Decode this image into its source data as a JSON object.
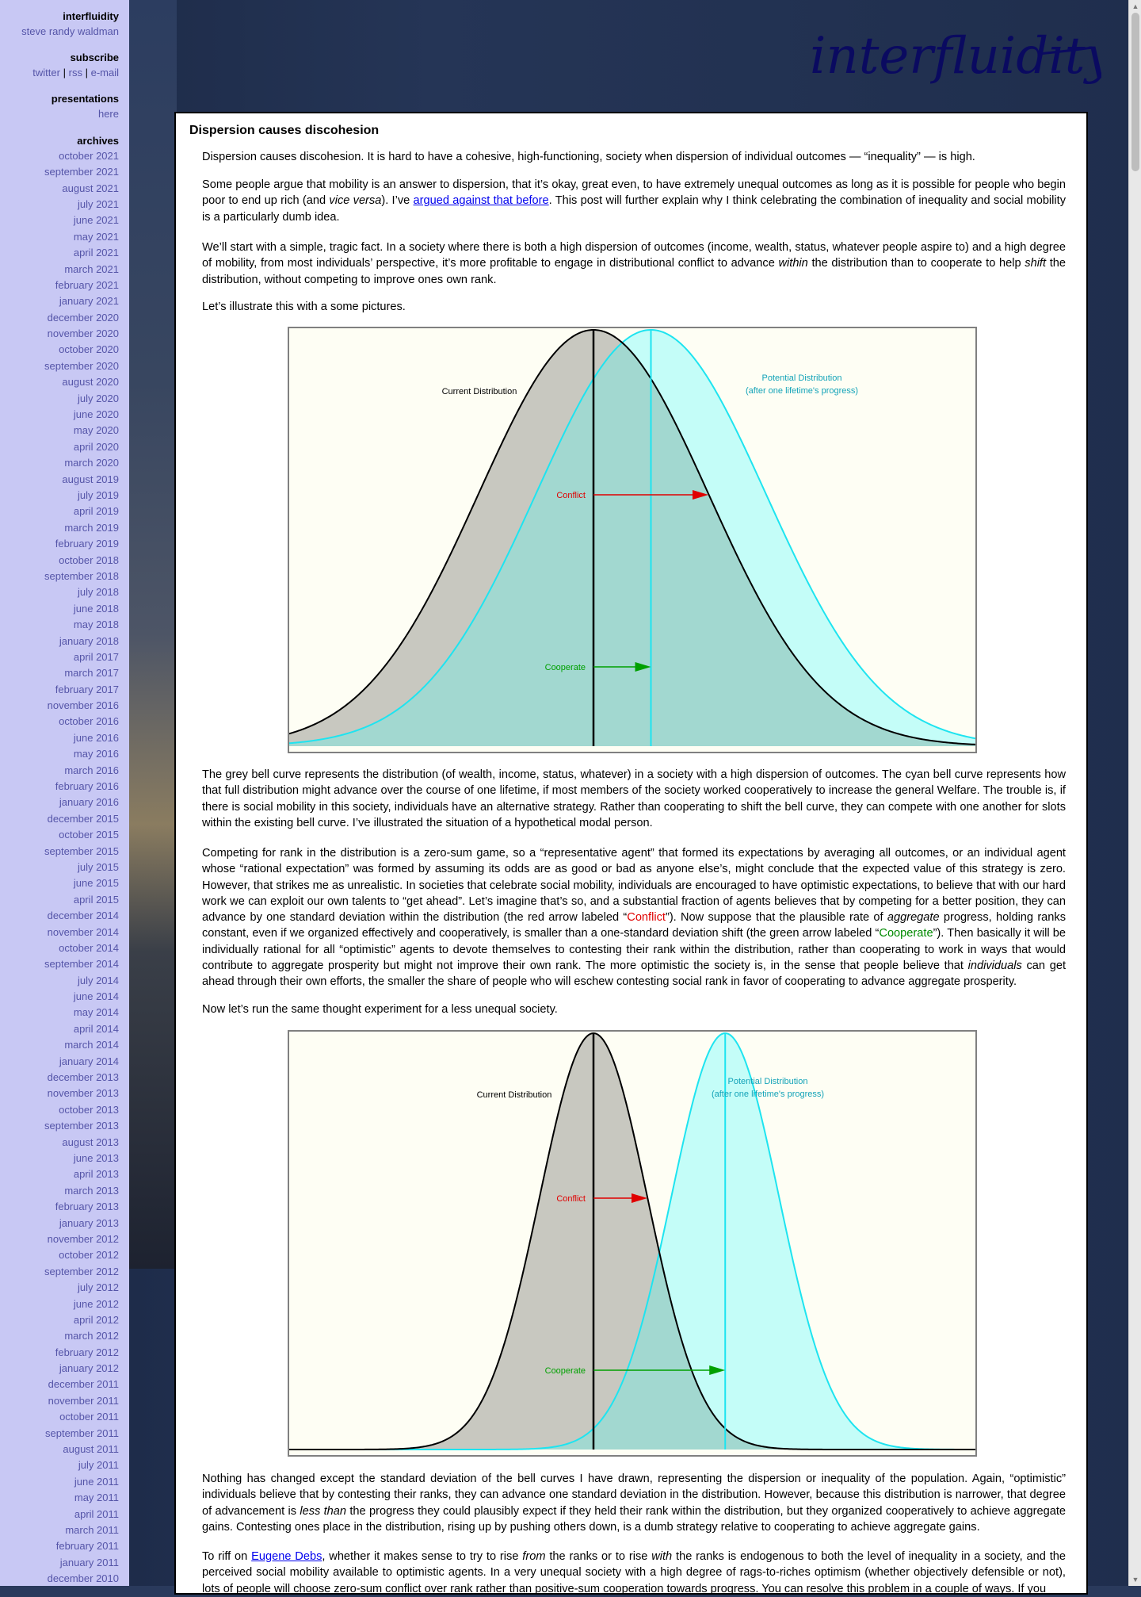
{
  "sidebar": {
    "site_name": "interfluidity",
    "author": "steve randy waldman",
    "subscribe_heading": "subscribe",
    "subscribe_links": [
      "twitter",
      "rss",
      "e-mail"
    ],
    "subscribe_sep": "|",
    "presentations_heading": "presentations",
    "presentations_link": "here",
    "archives_heading": "archives",
    "archives": [
      "october 2021",
      "september 2021",
      "august 2021",
      "july 2021",
      "june 2021",
      "may 2021",
      "april 2021",
      "march 2021",
      "february 2021",
      "january 2021",
      "december 2020",
      "november 2020",
      "october 2020",
      "september 2020",
      "august 2020",
      "july 2020",
      "june 2020",
      "may 2020",
      "april 2020",
      "march 2020",
      "august 2019",
      "july 2019",
      "april 2019",
      "march 2019",
      "february 2019",
      "october 2018",
      "september 2018",
      "july 2018",
      "june 2018",
      "may 2018",
      "january 2018",
      "april 2017",
      "march 2017",
      "february 2017",
      "november 2016",
      "october 2016",
      "june 2016",
      "may 2016",
      "march 2016",
      "february 2016",
      "january 2016",
      "december 2015",
      "october 2015",
      "september 2015",
      "july 2015",
      "june 2015",
      "april 2015",
      "december 2014",
      "november 2014",
      "october 2014",
      "september 2014",
      "july 2014",
      "june 2014",
      "may 2014",
      "april 2014",
      "march 2014",
      "january 2014",
      "december 2013",
      "november 2013",
      "october 2013",
      "september 2013",
      "august 2013",
      "june 2013",
      "april 2013",
      "march 2013",
      "february 2013",
      "january 2013",
      "november 2012",
      "october 2012",
      "september 2012",
      "july 2012",
      "june 2012",
      "april 2012",
      "march 2012",
      "february 2012",
      "january 2012",
      "december 2011",
      "november 2011",
      "october 2011",
      "september 2011",
      "august 2011",
      "july 2011",
      "june 2011",
      "may 2011",
      "april 2011",
      "march 2011",
      "february 2011",
      "january 2011",
      "december 2010"
    ]
  },
  "header": {
    "logo_text": "interfluidity"
  },
  "post": {
    "title": "Dispersion causes discohesion",
    "p1": "Dispersion causes discohesion. It is hard to have a cohesive, high-functioning, society when dispersion of individual outcomes — “inequality” — is high.",
    "p2_a": "Some people argue that mobility is an answer to dispersion, that it’s okay, great even, to have extremely unequal outcomes as long as it is possible for people who begin poor to end up rich (and ",
    "p2_em": "vice versa",
    "p2_b": "). I’ve ",
    "p2_link": "argued against that before",
    "p2_c": ". This post will further explain why I think celebrating the combination of inequality and social mobility is a particularly dumb idea.",
    "p3_a": "We’ll start with a simple, tragic fact. In a society where there is both a high dispersion of outcomes (income, wealth, status, whatever people aspire to) and a high degree of mobility, from most individuals’ perspective, it’s more profitable to engage in distributional conflict to advance ",
    "p3_em1": "within",
    "p3_b": " the distribution than to cooperate to help ",
    "p3_em2": "shift",
    "p3_c": " the distribution, without competing to improve ones own rank.",
    "p4": "Let’s illustrate this with a some pictures.",
    "p5": "The grey bell curve represents the distribution (of wealth, income, status, whatever) in a society with a high dispersion of outcomes. The cyan bell curve represents how that full distribution might advance over the course of one lifetime, if most members of the society worked cooperatively to increase the general Welfare. The trouble is, if there is social mobility in this society, individuals have an alternative strategy. Rather than cooperating to shift the bell curve, they can compete with one another for slots within the existing bell curve. I’ve illustrated the situation of a hypothetical modal person.",
    "p6_a": "Competing for rank in the distribution is a zero-sum game, so a “representative agent” that formed its expectations by averaging all outcomes, or an individual agent whose “rational expectation” was formed by assuming its odds are as good or bad as anyone else’s, might conclude that the expected value of this strategy is zero. However, that strikes me as unrealistic. In societies that celebrate social mobility, individuals are encouraged to have optimistic expectations, to believe that with our hard work we can exploit our own talents to “get ahead”. Let’s imagine that’s so, and a substantial fraction of agents believes that by competing for a better position, they can advance by one standard deviation within the distribution (the red arrow labeled “",
    "p6_conflict": "Conflict",
    "p6_b": "”). Now suppose that the plausible rate of ",
    "p6_em1": "aggregate",
    "p6_c": " progress, holding ranks constant, even if we organized effectively and cooperatively, is smaller than a one-standard deviation shift (the green arrow labeled “",
    "p6_cooperate": "Cooperate",
    "p6_d": "”). Then basically it will be individually rational for all “optimistic” agents to devote themselves to contesting their rank within the distribution, rather than cooperating to work in ways that would contribute to aggregate prosperity but might not improve their own rank. The more optimistic the society is, in the sense that people believe that ",
    "p6_em2": "individuals",
    "p6_e": " can get ahead through their own efforts, the smaller the share of people who will eschew contesting social rank in favor of cooperating to advance aggregate prosperity.",
    "p7": "Now let’s run the same thought experiment for a less unequal society.",
    "p8_a": "Nothing has changed except the standard deviation of the bell curves I have drawn, representing the dispersion or inequality of the population. Again, “optimistic” individuals believe that by contesting their ranks, they can advance one standard deviation in the distribution. However, because this distribution is narrower, that degree of advancement is ",
    "p8_em": "less than",
    "p8_b": " the progress they could plausibly expect if they held their rank within the distribution, but they organized cooperatively to achieve aggregate gains. Contesting ones place in the distribution, rising up by pushing others down, is a dumb strategy relative to cooperating to achieve aggregate gains.",
    "p9_a": "To riff on ",
    "p9_link": "Eugene Debs",
    "p9_b": ", whether it makes sense to try to rise ",
    "p9_em1": "from",
    "p9_c": " the ranks or to rise ",
    "p9_em2": "with",
    "p9_d": " the ranks is endogenous to both the level of inequality in a society, and the perceived social mobility available to optimistic agents. In a very unequal society with a high degree of rags-to-riches optimism (whether objectively defensible or not), lots of people will choose zero-sum conflict over rank rather than positive-sum cooperation towards progress. You can resolve this problem in a couple of ways. If you"
  },
  "chart1": {
    "label_current": "Current Distribution",
    "label_potential_1": "Potential Distribution",
    "label_potential_2": "(after one lifetime's progress)",
    "label_conflict": "Conflict",
    "label_cooperate": "Cooperate"
  },
  "chart2": {
    "label_current": "Current Distribution",
    "label_potential_1": "Potential Distribution",
    "label_potential_2": "(after one lifetime's progress)",
    "label_conflict": "Conflict",
    "label_cooperate": "Cooperate"
  },
  "colors": {
    "grey_fill": "#c8c8c0",
    "cyan_fill": "#c4fdf8",
    "cyan_line": "#1ee4f0",
    "conflict": "#e00000",
    "cooperate": "#00a000",
    "bg": "#fefef4"
  },
  "chart_data": [
    {
      "type": "area",
      "shape": "normal",
      "series": [
        {
          "name": "Current Distribution",
          "relative_mean": 0,
          "relative_sd": 1.0
        },
        {
          "name": "Potential Distribution",
          "relative_mean": 0.5,
          "relative_sd": 1.0
        }
      ],
      "annotations": [
        "Conflict",
        "Cooperate"
      ]
    },
    {
      "type": "area",
      "shape": "normal",
      "series": [
        {
          "name": "Current Distribution",
          "relative_mean": 0,
          "relative_sd": 0.45
        },
        {
          "name": "Potential Distribution",
          "relative_mean": 1.1,
          "relative_sd": 0.45
        }
      ],
      "annotations": [
        "Conflict",
        "Cooperate"
      ]
    }
  ]
}
